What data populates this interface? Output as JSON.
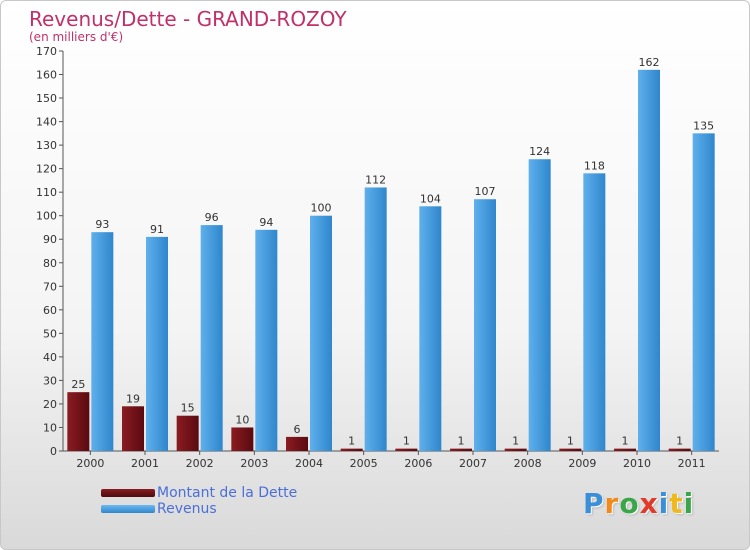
{
  "header": {
    "title": "Revenus/Dette - GRAND-ROZOY",
    "subtitle": "(en milliers d'€)"
  },
  "colors": {
    "title": "#c0306a",
    "dette_dark": "#5a0a10",
    "dette_light": "#b23a40",
    "revenus_dark": "#2a7fc4",
    "revenus_light": "#5fb0ec",
    "legend_text": "#4a6fd8"
  },
  "chart_data": {
    "type": "bar",
    "categories": [
      "2000",
      "2001",
      "2002",
      "2003",
      "2004",
      "2005",
      "2006",
      "2007",
      "2008",
      "2009",
      "2010",
      "2011"
    ],
    "series": [
      {
        "name": "Montant de la Dette",
        "values": [
          25,
          19,
          15,
          10,
          6,
          1,
          1,
          1,
          1,
          1,
          1,
          1
        ]
      },
      {
        "name": "Revenus",
        "values": [
          93,
          91,
          96,
          94,
          100,
          112,
          104,
          107,
          124,
          118,
          162,
          135
        ]
      }
    ],
    "ylim": [
      0,
      170
    ],
    "yticks": [
      0,
      10,
      20,
      30,
      40,
      50,
      60,
      70,
      80,
      90,
      100,
      110,
      120,
      130,
      140,
      150,
      160,
      170
    ],
    "grid": false,
    "legend_position": "bottom-left"
  },
  "legend": {
    "items": [
      {
        "label": "Montant de la Dette"
      },
      {
        "label": "Revenus"
      }
    ]
  },
  "logo": {
    "letters": [
      {
        "ch": "P",
        "color": "#3a8fd8"
      },
      {
        "ch": "r",
        "color": "#f08a1c"
      },
      {
        "ch": "o",
        "color": "#3aa64a"
      },
      {
        "ch": "x",
        "color": "#e03a2a"
      },
      {
        "ch": "i",
        "color": "#3a8fd8"
      },
      {
        "ch": "t",
        "color": "#f0b81c"
      },
      {
        "ch": "i",
        "color": "#3aa64a"
      }
    ]
  }
}
